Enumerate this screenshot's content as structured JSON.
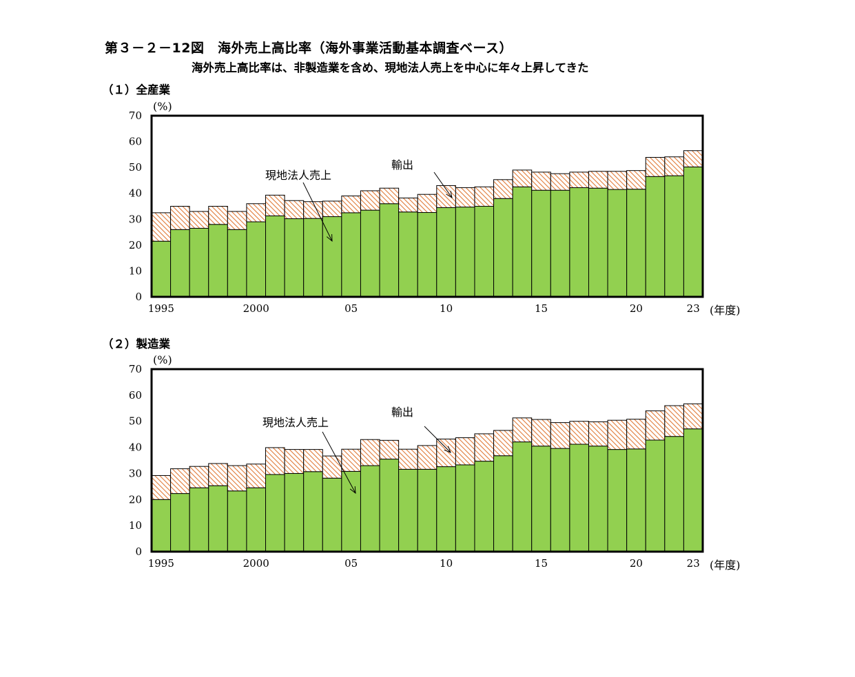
{
  "figure": {
    "title": "第３－２－12図　海外売上高比率（海外事業活動基本調査ベース）",
    "subtitle": "海外売上高比率は、非製造業を含め、現地法人売上を中心に年々上昇してきた"
  },
  "colors": {
    "local_sales_fill": "#92d050",
    "export_hatch": "#e07b39",
    "border": "#000000"
  },
  "chart_data": [
    {
      "type": "bar",
      "stacked": true,
      "panel_title": "（１）全産業",
      "ylabel": "(%)",
      "xlabel": "(年度)",
      "ylim": [
        0,
        70
      ],
      "yticks": [
        "0",
        "10",
        "20",
        "30",
        "40",
        "50",
        "60",
        "70"
      ],
      "xtick_labels": [
        {
          "index": 0,
          "label": "1995"
        },
        {
          "index": 5,
          "label": "2000"
        },
        {
          "index": 10,
          "label": "05"
        },
        {
          "index": 15,
          "label": "10"
        },
        {
          "index": 20,
          "label": "15"
        },
        {
          "index": 25,
          "label": "20"
        },
        {
          "index": 28,
          "label": "23"
        }
      ],
      "categories": [
        "1995",
        "1996",
        "1997",
        "1998",
        "1999",
        "2000",
        "2001",
        "2002",
        "2003",
        "2004",
        "2005",
        "2006",
        "2007",
        "2008",
        "2009",
        "2010",
        "2011",
        "2012",
        "2013",
        "2014",
        "2015",
        "2016",
        "2017",
        "2018",
        "2019",
        "2020",
        "2021",
        "2022",
        "2023"
      ],
      "series": [
        {
          "name": "現地法人売上",
          "pattern": "solid",
          "values": [
            21.5,
            26.0,
            26.5,
            28.0,
            26.0,
            29.0,
            31.3,
            30.2,
            30.3,
            31.0,
            32.5,
            33.5,
            36.0,
            32.8,
            32.6,
            34.5,
            34.7,
            35.0,
            38.0,
            42.5,
            41.2,
            41.2,
            42.2,
            42.0,
            41.5,
            41.6,
            46.5,
            46.8,
            50.2
          ]
        },
        {
          "name": "輸出",
          "pattern": "hatch",
          "values": [
            11.0,
            9.0,
            6.5,
            7.0,
            7.0,
            7.0,
            8.0,
            7.0,
            6.5,
            6.0,
            6.5,
            7.5,
            6.0,
            5.4,
            7.0,
            8.5,
            7.5,
            7.5,
            7.3,
            6.5,
            7.0,
            6.4,
            6.0,
            6.5,
            7.0,
            7.2,
            7.4,
            7.3,
            6.3
          ]
        }
      ],
      "annotations": [
        "現地法人売上",
        "輸出"
      ]
    },
    {
      "type": "bar",
      "stacked": true,
      "panel_title": "（２）製造業",
      "ylabel": "(%)",
      "xlabel": "(年度)",
      "ylim": [
        0,
        70
      ],
      "yticks": [
        "0",
        "10",
        "20",
        "30",
        "40",
        "50",
        "60",
        "70"
      ],
      "xtick_labels": [
        {
          "index": 0,
          "label": "1995"
        },
        {
          "index": 5,
          "label": "2000"
        },
        {
          "index": 10,
          "label": "05"
        },
        {
          "index": 15,
          "label": "10"
        },
        {
          "index": 20,
          "label": "15"
        },
        {
          "index": 25,
          "label": "20"
        },
        {
          "index": 28,
          "label": "23"
        }
      ],
      "categories": [
        "1995",
        "1996",
        "1997",
        "1998",
        "1999",
        "2000",
        "2001",
        "2002",
        "2003",
        "2004",
        "2005",
        "2006",
        "2007",
        "2008",
        "2009",
        "2010",
        "2011",
        "2012",
        "2013",
        "2014",
        "2015",
        "2016",
        "2017",
        "2018",
        "2019",
        "2020",
        "2021",
        "2022",
        "2023"
      ],
      "series": [
        {
          "name": "現地法人売上",
          "pattern": "solid",
          "values": [
            20.0,
            22.3,
            24.5,
            25.3,
            23.3,
            24.5,
            29.6,
            30.0,
            30.7,
            28.2,
            30.8,
            33.0,
            35.5,
            31.6,
            31.6,
            32.6,
            33.3,
            34.7,
            36.8,
            42.1,
            40.5,
            39.6,
            41.2,
            40.5,
            39.2,
            39.4,
            42.8,
            44.2,
            47.1
          ]
        },
        {
          "name": "輸出",
          "pattern": "hatch",
          "values": [
            9.2,
            9.5,
            8.2,
            8.5,
            9.7,
            9.1,
            10.3,
            9.2,
            8.5,
            8.5,
            8.5,
            10.0,
            7.2,
            7.7,
            9.1,
            10.6,
            10.4,
            10.5,
            9.7,
            9.2,
            10.2,
            9.9,
            8.8,
            9.3,
            11.2,
            11.4,
            11.2,
            11.8,
            9.6
          ]
        }
      ],
      "annotations": [
        "現地法人売上",
        "輸出"
      ]
    }
  ]
}
